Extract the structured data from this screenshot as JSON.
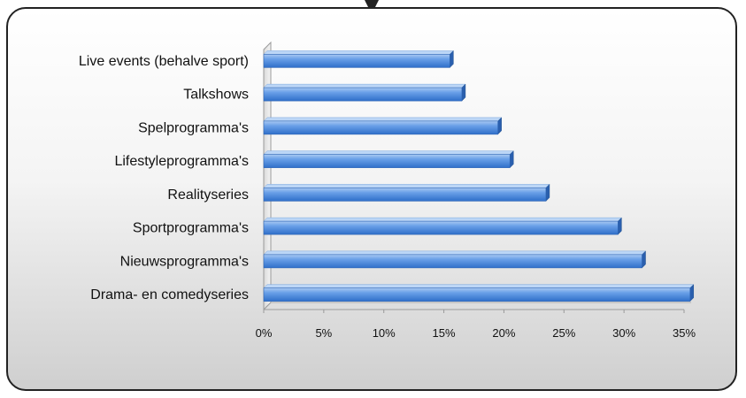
{
  "chart_data": {
    "type": "bar",
    "orientation": "horizontal",
    "title": "",
    "xlabel": "",
    "ylabel": "",
    "categories": [
      "Drama- en comedyseries",
      "Nieuwsprogramma's",
      "Sportprogramma's",
      "Realityseries",
      "Lifestyleprogramma's",
      "Spelprogramma's",
      "Talkshows",
      "Live events (behalve sport)"
    ],
    "values": [
      35.5,
      31.5,
      29.5,
      23.5,
      20.5,
      19.5,
      16.5,
      15.5
    ],
    "xlim": [
      0,
      35
    ],
    "xticks": [
      "0%",
      "5%",
      "10%",
      "15%",
      "20%",
      "25%",
      "30%",
      "35%"
    ],
    "grid": false,
    "legend": "none",
    "bar_color": "#4a86d8",
    "bar_highlight": "#a9c9f2"
  }
}
